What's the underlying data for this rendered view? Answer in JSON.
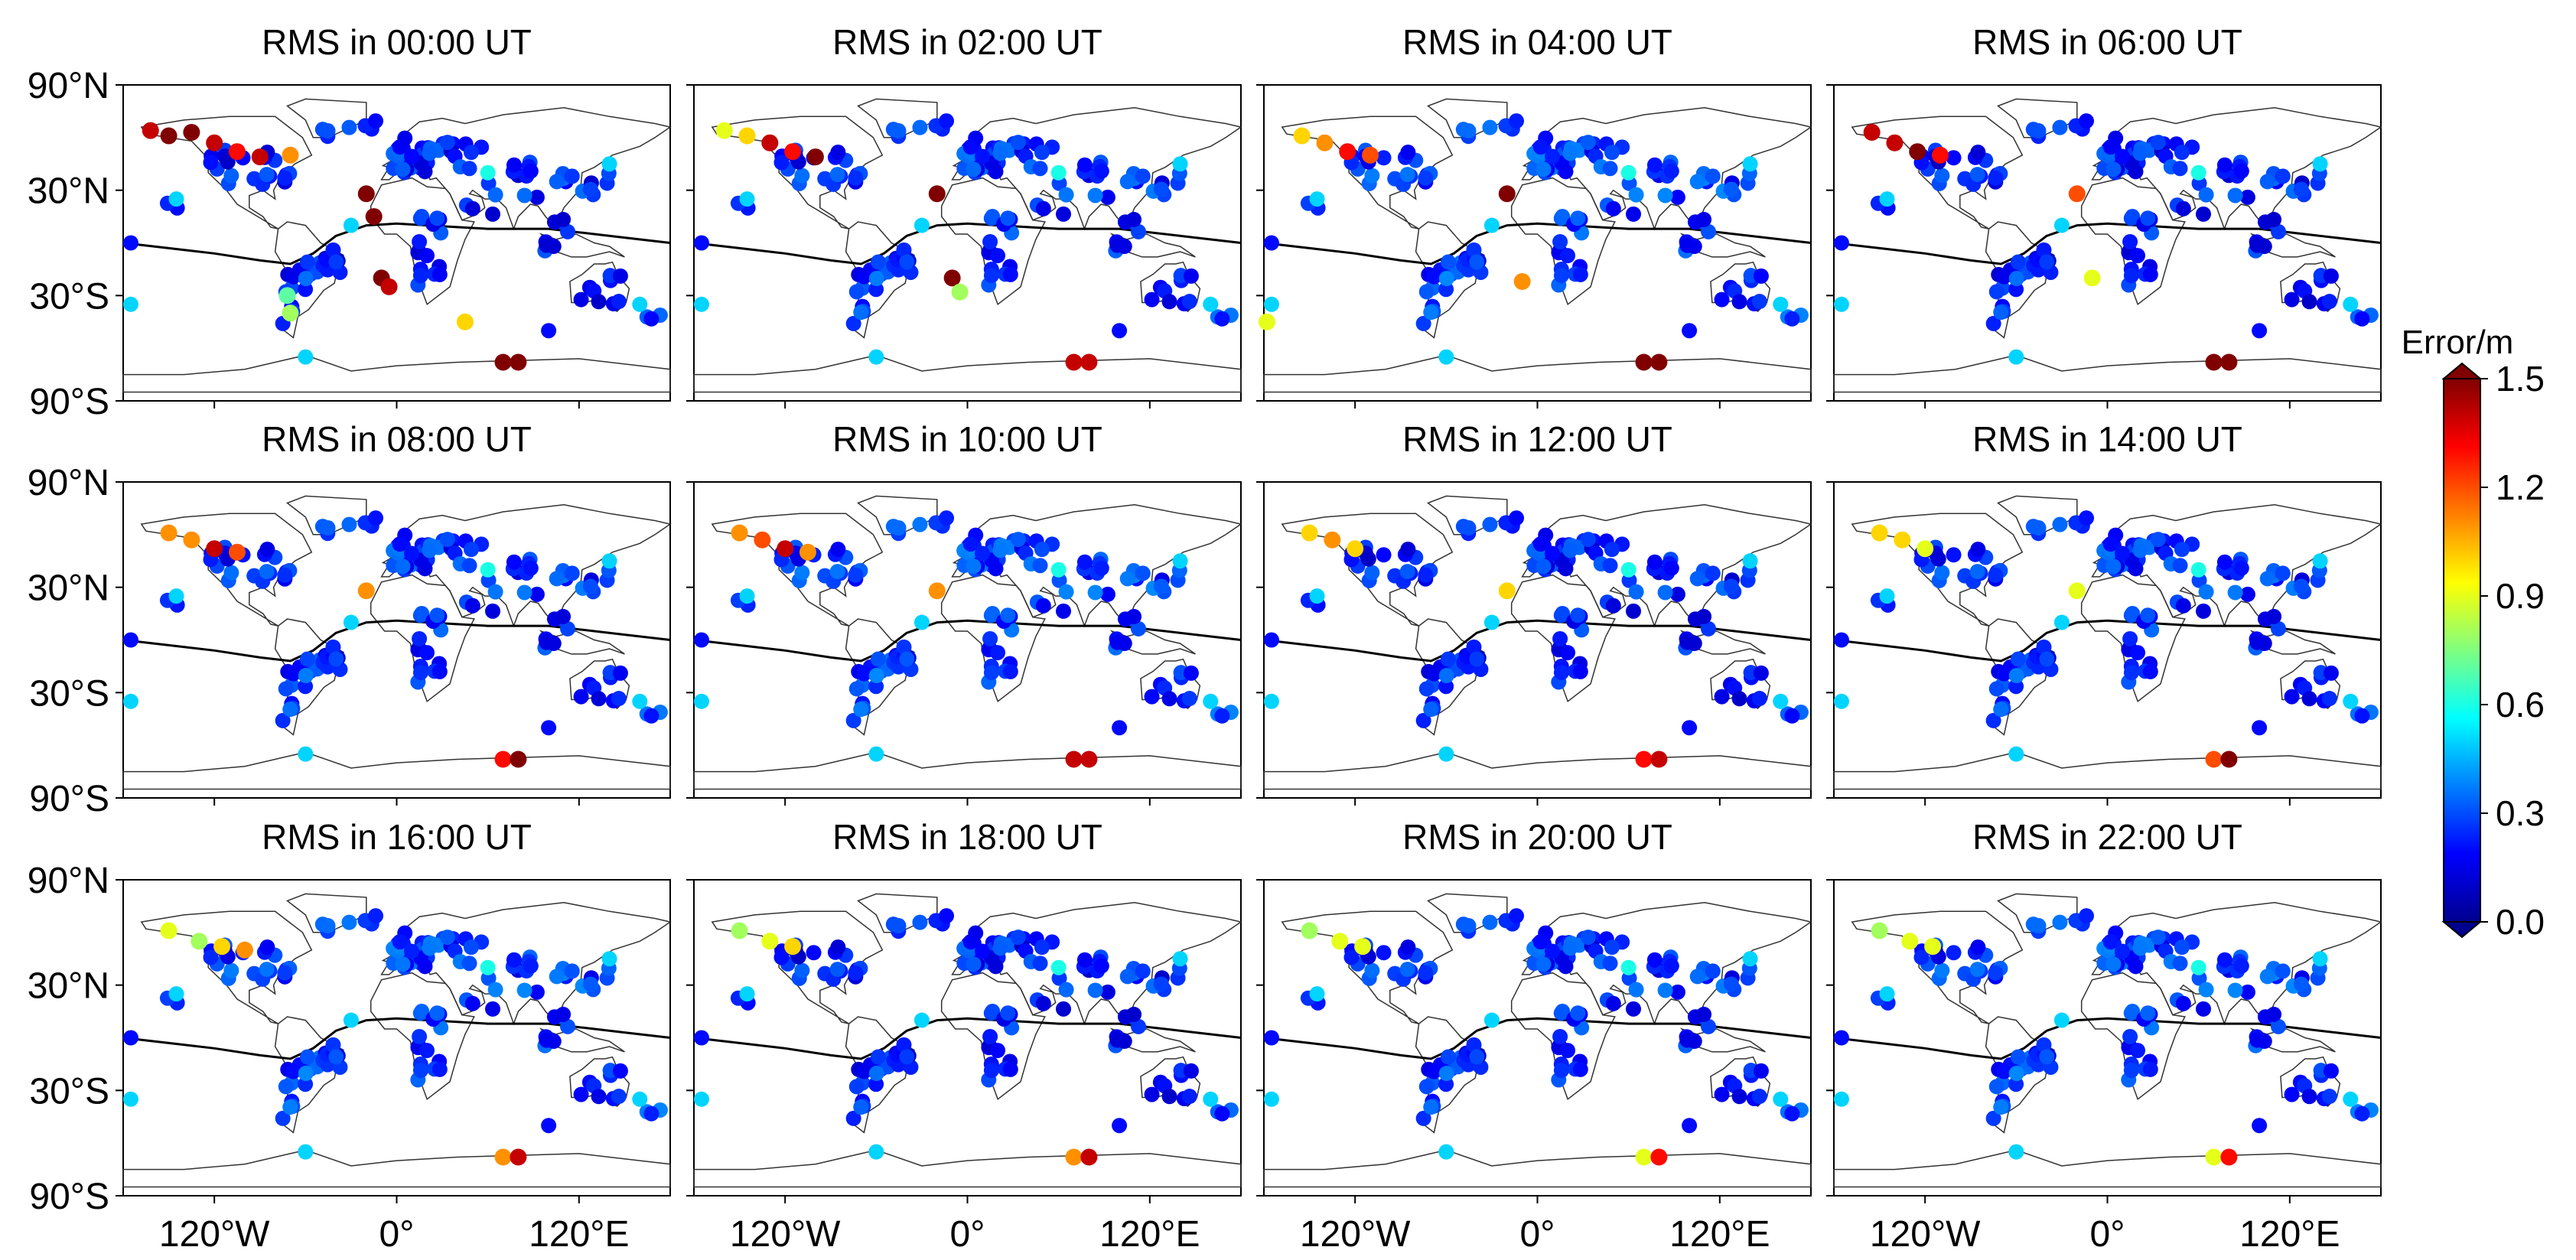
{
  "figure": {
    "panel_titles": [
      "RMS in 00:00 UT",
      "RMS in 02:00 UT",
      "RMS in 04:00 UT",
      "RMS in 06:00 UT",
      "RMS in 08:00 UT",
      "RMS in 10:00 UT",
      "RMS in 12:00 UT",
      "RMS in 14:00 UT",
      "RMS in 16:00 UT",
      "RMS in 18:00 UT",
      "RMS in 20:00 UT",
      "RMS in 22:00 UT"
    ],
    "lat_tick_labels": [
      "90°N",
      "30°N",
      "30°S",
      "90°S"
    ],
    "lon_tick_labels": [
      "120°W",
      "0°",
      "120°E"
    ]
  },
  "colorbar": {
    "title": "Error/m",
    "tick_labels": [
      "1.5",
      "1.2",
      "0.9",
      "0.6",
      "0.3",
      "0.0"
    ],
    "range": [
      0.0,
      1.5
    ],
    "colormap": "jet"
  },
  "chart_data": {
    "type": "scatter",
    "map_projection": "cylindrical",
    "lon_range": [
      -180,
      180
    ],
    "lat_range": [
      -90,
      90
    ],
    "lat_ticks": [
      90,
      30,
      -30,
      -90
    ],
    "lon_ticks": [
      -120,
      0,
      120
    ],
    "value_unit": "m",
    "value_range": [
      0.0,
      1.5
    ],
    "panels": [
      {
        "label": "RMS in 00:00 UT",
        "high_error_stations": [
          {
            "lon": -162,
            "lat": 64,
            "value": 1.4
          },
          {
            "lon": -150,
            "lat": 61,
            "value": 1.5
          },
          {
            "lon": -135,
            "lat": 63,
            "value": 1.5
          },
          {
            "lon": -120,
            "lat": 57,
            "value": 1.4
          },
          {
            "lon": -105,
            "lat": 52,
            "value": 1.3
          },
          {
            "lon": -90,
            "lat": 49,
            "value": 1.4
          },
          {
            "lon": -70,
            "lat": 50,
            "value": 1.1
          },
          {
            "lon": -20,
            "lat": 28,
            "value": 1.5
          },
          {
            "lon": -15,
            "lat": 15,
            "value": 1.5
          },
          {
            "lon": -10,
            "lat": -20,
            "value": 1.5
          },
          {
            "lon": -5,
            "lat": -25,
            "value": 1.4
          },
          {
            "lon": 45,
            "lat": -45,
            "value": 1.0
          },
          {
            "lon": 70,
            "lat": -68,
            "value": 1.5
          },
          {
            "lon": 80,
            "lat": -68,
            "value": 1.5
          },
          {
            "lon": -70,
            "lat": -40,
            "value": 0.8
          },
          {
            "lon": -72,
            "lat": -30,
            "value": 0.7
          }
        ]
      },
      {
        "label": "RMS in 02:00 UT",
        "high_error_stations": [
          {
            "lon": -160,
            "lat": 64,
            "value": 0.9
          },
          {
            "lon": -145,
            "lat": 61,
            "value": 1.0
          },
          {
            "lon": -130,
            "lat": 57,
            "value": 1.4
          },
          {
            "lon": -115,
            "lat": 52,
            "value": 1.3
          },
          {
            "lon": -100,
            "lat": 49,
            "value": 1.5
          },
          {
            "lon": -20,
            "lat": 28,
            "value": 1.5
          },
          {
            "lon": -10,
            "lat": -20,
            "value": 1.5
          },
          {
            "lon": -5,
            "lat": -28,
            "value": 0.8
          },
          {
            "lon": 70,
            "lat": -68,
            "value": 1.4
          },
          {
            "lon": 80,
            "lat": -68,
            "value": 1.4
          }
        ]
      },
      {
        "label": "RMS in 04:00 UT",
        "high_error_stations": [
          {
            "lon": -155,
            "lat": 61,
            "value": 1.0
          },
          {
            "lon": -140,
            "lat": 57,
            "value": 1.1
          },
          {
            "lon": -125,
            "lat": 52,
            "value": 1.3
          },
          {
            "lon": -110,
            "lat": 50,
            "value": 1.2
          },
          {
            "lon": -20,
            "lat": 28,
            "value": 1.5
          },
          {
            "lon": -10,
            "lat": -22,
            "value": 1.1
          },
          {
            "lon": -178,
            "lat": -45,
            "value": 0.9
          },
          {
            "lon": 70,
            "lat": -68,
            "value": 1.5
          },
          {
            "lon": 80,
            "lat": -68,
            "value": 1.5
          }
        ]
      },
      {
        "label": "RMS in 06:00 UT",
        "high_error_stations": [
          {
            "lon": -155,
            "lat": 63,
            "value": 1.4
          },
          {
            "lon": -140,
            "lat": 57,
            "value": 1.4
          },
          {
            "lon": -125,
            "lat": 52,
            "value": 1.5
          },
          {
            "lon": -110,
            "lat": 50,
            "value": 1.3
          },
          {
            "lon": -20,
            "lat": 28,
            "value": 1.2
          },
          {
            "lon": -10,
            "lat": -20,
            "value": 0.9
          },
          {
            "lon": 70,
            "lat": -68,
            "value": 1.5
          },
          {
            "lon": 80,
            "lat": -68,
            "value": 1.5
          }
        ]
      },
      {
        "label": "RMS in 08:00 UT",
        "high_error_stations": [
          {
            "lon": -150,
            "lat": 61,
            "value": 1.1
          },
          {
            "lon": -135,
            "lat": 57,
            "value": 1.1
          },
          {
            "lon": -120,
            "lat": 52,
            "value": 1.4
          },
          {
            "lon": -105,
            "lat": 50,
            "value": 1.2
          },
          {
            "lon": -20,
            "lat": 28,
            "value": 1.1
          },
          {
            "lon": 70,
            "lat": -68,
            "value": 1.3
          },
          {
            "lon": 80,
            "lat": -68,
            "value": 1.5
          }
        ]
      },
      {
        "label": "RMS in 10:00 UT",
        "high_error_stations": [
          {
            "lon": -150,
            "lat": 61,
            "value": 1.1
          },
          {
            "lon": -135,
            "lat": 57,
            "value": 1.2
          },
          {
            "lon": -120,
            "lat": 52,
            "value": 1.4
          },
          {
            "lon": -105,
            "lat": 50,
            "value": 1.1
          },
          {
            "lon": -20,
            "lat": 28,
            "value": 1.1
          },
          {
            "lon": 70,
            "lat": -68,
            "value": 1.4
          },
          {
            "lon": 80,
            "lat": -68,
            "value": 1.4
          }
        ]
      },
      {
        "label": "RMS in 12:00 UT",
        "high_error_stations": [
          {
            "lon": -150,
            "lat": 61,
            "value": 1.0
          },
          {
            "lon": -135,
            "lat": 57,
            "value": 1.1
          },
          {
            "lon": -120,
            "lat": 52,
            "value": 1.0
          },
          {
            "lon": -20,
            "lat": 28,
            "value": 1.0
          },
          {
            "lon": 70,
            "lat": -68,
            "value": 1.3
          },
          {
            "lon": 80,
            "lat": -68,
            "value": 1.4
          }
        ]
      },
      {
        "label": "RMS in 14:00 UT",
        "high_error_stations": [
          {
            "lon": -150,
            "lat": 61,
            "value": 1.0
          },
          {
            "lon": -135,
            "lat": 57,
            "value": 1.0
          },
          {
            "lon": -120,
            "lat": 52,
            "value": 0.9
          },
          {
            "lon": -20,
            "lat": 28,
            "value": 0.9
          },
          {
            "lon": 70,
            "lat": -68,
            "value": 1.2
          },
          {
            "lon": 80,
            "lat": -68,
            "value": 1.5
          }
        ]
      },
      {
        "label": "RMS in 16:00 UT",
        "high_error_stations": [
          {
            "lon": -150,
            "lat": 61,
            "value": 0.9
          },
          {
            "lon": -130,
            "lat": 55,
            "value": 0.8
          },
          {
            "lon": -115,
            "lat": 52,
            "value": 1.0
          },
          {
            "lon": -100,
            "lat": 50,
            "value": 1.1
          },
          {
            "lon": 70,
            "lat": -68,
            "value": 1.1
          },
          {
            "lon": 80,
            "lat": -68,
            "value": 1.4
          }
        ]
      },
      {
        "label": "RMS in 18:00 UT",
        "high_error_stations": [
          {
            "lon": -150,
            "lat": 61,
            "value": 0.8
          },
          {
            "lon": -130,
            "lat": 55,
            "value": 0.9
          },
          {
            "lon": -115,
            "lat": 52,
            "value": 1.0
          },
          {
            "lon": 70,
            "lat": -68,
            "value": 1.1
          },
          {
            "lon": 80,
            "lat": -68,
            "value": 1.4
          }
        ]
      },
      {
        "label": "RMS in 20:00 UT",
        "high_error_stations": [
          {
            "lon": -150,
            "lat": 61,
            "value": 0.8
          },
          {
            "lon": -130,
            "lat": 55,
            "value": 0.9
          },
          {
            "lon": -115,
            "lat": 52,
            "value": 0.9
          },
          {
            "lon": 70,
            "lat": -68,
            "value": 0.9
          },
          {
            "lon": 80,
            "lat": -68,
            "value": 1.3
          }
        ]
      },
      {
        "label": "RMS in 22:00 UT",
        "high_error_stations": [
          {
            "lon": -150,
            "lat": 61,
            "value": 0.8
          },
          {
            "lon": -130,
            "lat": 55,
            "value": 0.9
          },
          {
            "lon": -115,
            "lat": 52,
            "value": 0.9
          },
          {
            "lon": 70,
            "lat": -68,
            "value": 0.9
          },
          {
            "lon": 80,
            "lat": -68,
            "value": 1.3
          }
        ]
      }
    ]
  }
}
